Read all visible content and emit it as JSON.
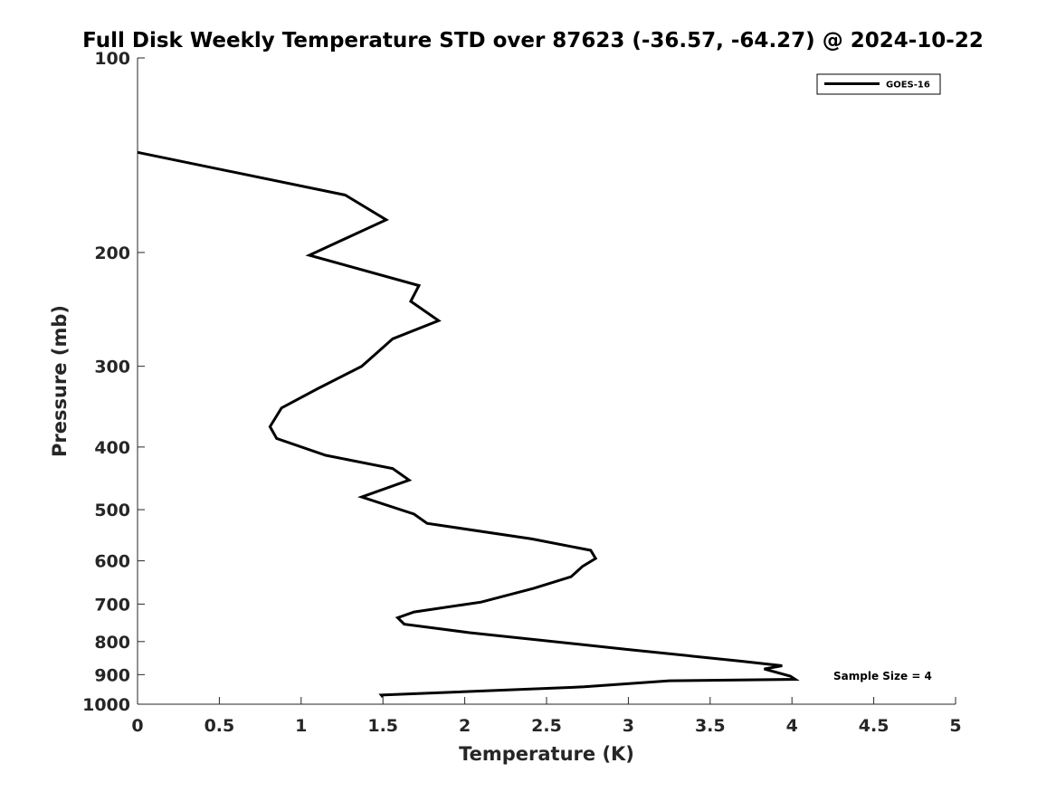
{
  "chart_data": {
    "type": "line",
    "title": "Full Disk Weekly Temperature STD over 87623 (-36.57, -64.27) @ 2024-10-22",
    "xlabel": "Temperature (K)",
    "ylabel": "Pressure (mb)",
    "xlim": [
      0,
      5
    ],
    "ylim": [
      100,
      1000
    ],
    "y_scale": "log",
    "y_reversed": true,
    "x_ticks": [
      0,
      0.5,
      1,
      1.5,
      2,
      2.5,
      3,
      3.5,
      4,
      4.5,
      5
    ],
    "x_tick_labels": [
      "0",
      "0.5",
      "1",
      "1.5",
      "2",
      "2.5",
      "3",
      "3.5",
      "4",
      "4.5",
      "5"
    ],
    "y_ticks": [
      100,
      200,
      300,
      400,
      500,
      600,
      700,
      800,
      900,
      1000
    ],
    "y_tick_labels": [
      "100",
      "200",
      "300",
      "400",
      "500",
      "600",
      "700",
      "800",
      "900",
      "1000"
    ],
    "grid": false,
    "legend_position": "top-right",
    "annotation": "Sample Size = 4",
    "series": [
      {
        "name": "GOES-16",
        "color": "#000000",
        "x": [
          0.0,
          1.27,
          1.52,
          1.05,
          1.72,
          1.67,
          1.84,
          1.56,
          1.37,
          1.1,
          0.88,
          0.81,
          0.85,
          1.15,
          1.56,
          1.66,
          1.37,
          1.69,
          1.77,
          2.41,
          2.77,
          2.8,
          2.72,
          2.65,
          2.42,
          2.1,
          1.69,
          1.59,
          1.63,
          2.03,
          2.98,
          3.69,
          3.94,
          3.83,
          3.99,
          4.02,
          3.25,
          2.73,
          1.49,
          1.5
        ],
        "y": [
          140,
          163,
          178,
          202,
          225,
          238,
          255,
          272,
          300,
          325,
          348,
          372,
          388,
          412,
          432,
          450,
          478,
          508,
          525,
          555,
          578,
          595,
          612,
          635,
          662,
          695,
          720,
          735,
          752,
          775,
          822,
          858,
          872,
          882,
          905,
          915,
          920,
          940,
          968,
          975
        ]
      }
    ]
  }
}
